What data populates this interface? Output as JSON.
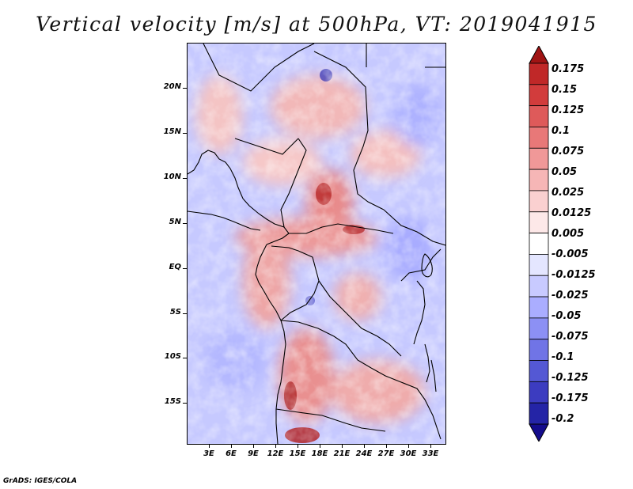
{
  "title": "Vertical velocity [m/s] at 500hPa, VT: 2019041915",
  "credit": "GrADS: IGES/COLA",
  "chart_data": {
    "type": "heatmap",
    "variable": "Vertical velocity",
    "units": "m/s",
    "level": "500hPa",
    "valid_time": "2019041915",
    "lat_labels": [
      "20N",
      "15N",
      "10N",
      "5N",
      "EQ",
      "5S",
      "10S",
      "15S"
    ],
    "lon_labels": [
      "3E",
      "6E",
      "9E",
      "12E",
      "15E",
      "18E",
      "21E",
      "24E",
      "27E",
      "30E",
      "33E"
    ],
    "lon_range": [
      0,
      35
    ],
    "lat_range": [
      -20,
      25
    ],
    "colorbar": {
      "labels": [
        "0.175",
        "0.15",
        "0.125",
        "0.1",
        "0.075",
        "0.05",
        "0.025",
        "0.0125",
        "0.005",
        "-0.005",
        "-0.0125",
        "-0.025",
        "-0.05",
        "-0.075",
        "-0.1",
        "-0.125",
        "-0.175",
        "-0.2"
      ],
      "colors": [
        "#a01414",
        "#c02828",
        "#d23c3c",
        "#de5a5a",
        "#e87878",
        "#f09898",
        "#f6b6b6",
        "#fad0d0",
        "#fde8e8",
        "#ffffff",
        "#e4e6ff",
        "#c8caff",
        "#aaadff",
        "#8c90f4",
        "#7074e6",
        "#5458d4",
        "#3c3cc0",
        "#2424a6",
        "#140c8c"
      ]
    }
  }
}
